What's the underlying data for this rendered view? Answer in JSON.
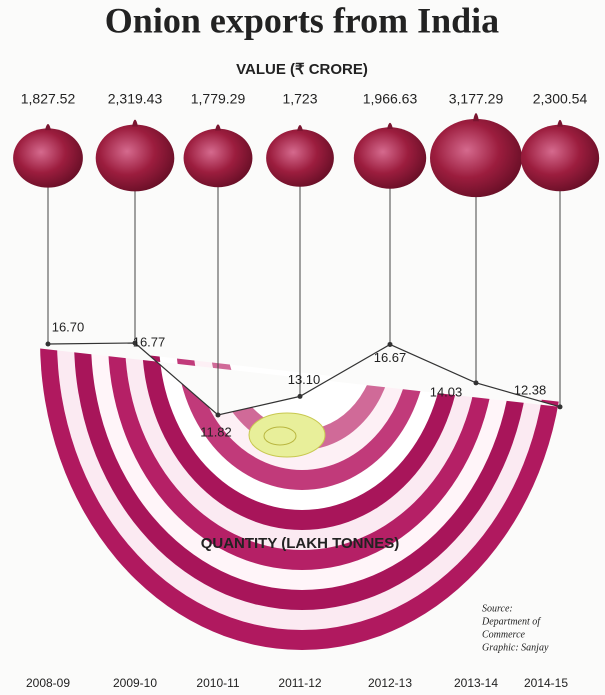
{
  "chart_data": {
    "type": "line",
    "title": "Onion exports from India",
    "value_title": "VALUE (₹ CRORE)",
    "quantity_title": "QUANTITY (LAKH TONNES)",
    "categories": [
      "2008-09",
      "2009-10",
      "2010-11",
      "2011-12",
      "2012-13",
      "2013-14",
      "2014-15"
    ],
    "series": [
      {
        "name": "VALUE (₹ CRORE)",
        "color": "#8e1a3a",
        "values": [
          1827.52,
          2319.43,
          1779.29,
          1723,
          1966.63,
          3177.29,
          2300.54
        ],
        "value_labels": [
          "1,827.52",
          "2,319.43",
          "1,779.29",
          "1,723",
          "1,966.63",
          "3,177.29",
          "2,300.54"
        ]
      },
      {
        "name": "QUANTITY (LAKH TONNES)",
        "color": "#333333",
        "values": [
          16.7,
          16.77,
          11.82,
          13.1,
          16.67,
          14.03,
          12.38
        ],
        "value_labels": [
          "16.70",
          "16.77",
          "11.82",
          "13.10",
          "16.67",
          "14.03",
          "12.38"
        ]
      }
    ],
    "source": [
      "Source:",
      "Department of",
      "Commerce"
    ],
    "credit": "Graphic: Sanjay"
  }
}
